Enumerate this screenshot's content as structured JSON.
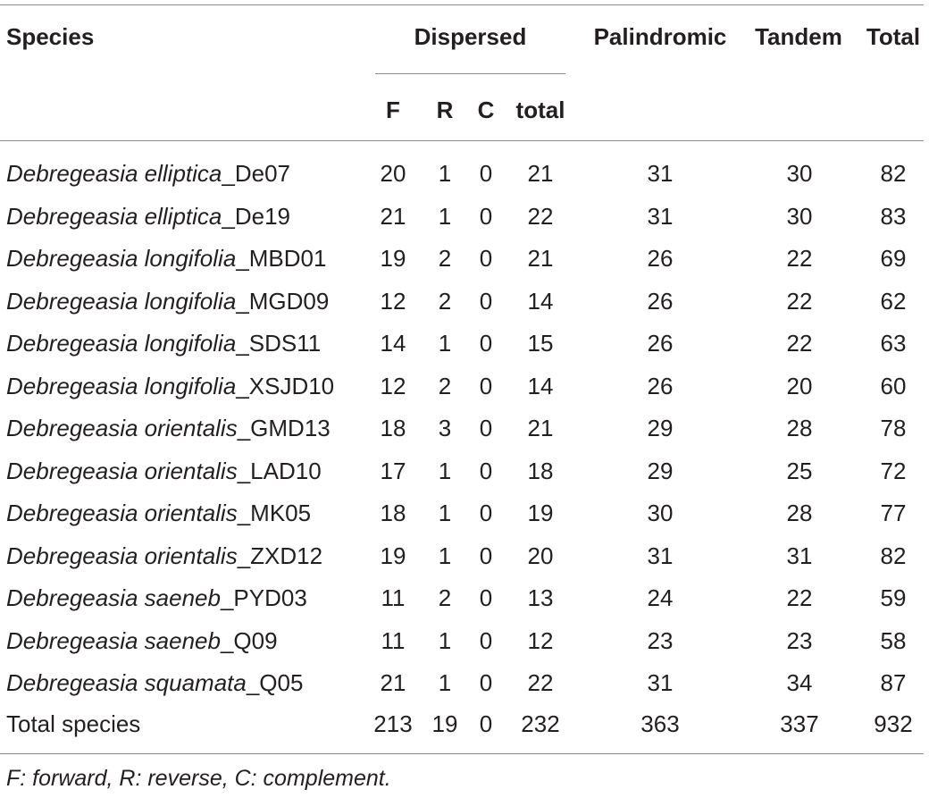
{
  "table": {
    "headers": {
      "species": "Species",
      "dispersed": "Dispersed",
      "palindromic": "Palindromic",
      "tandem": "Tandem",
      "total": "Total",
      "sub": {
        "f": "F",
        "r": "R",
        "c": "C",
        "total": "total"
      }
    },
    "rows": [
      {
        "genus_species": "Debregeasia elliptica",
        "suffix": "_De07",
        "f": "20",
        "r": "1",
        "c": "0",
        "disp_total": "21",
        "palindromic": "31",
        "tandem": "30",
        "total": "82"
      },
      {
        "genus_species": "Debregeasia elliptica",
        "suffix": "_De19",
        "f": "21",
        "r": "1",
        "c": "0",
        "disp_total": "22",
        "palindromic": "31",
        "tandem": "30",
        "total": "83"
      },
      {
        "genus_species": "Debregeasia longifolia",
        "suffix": "_MBD01",
        "f": "19",
        "r": "2",
        "c": "0",
        "disp_total": "21",
        "palindromic": "26",
        "tandem": "22",
        "total": "69"
      },
      {
        "genus_species": "Debregeasia longifolia",
        "suffix": "_MGD09",
        "f": "12",
        "r": "2",
        "c": "0",
        "disp_total": "14",
        "palindromic": "26",
        "tandem": "22",
        "total": "62"
      },
      {
        "genus_species": "Debregeasia longifolia",
        "suffix": "_SDS11",
        "f": "14",
        "r": "1",
        "c": "0",
        "disp_total": "15",
        "palindromic": "26",
        "tandem": "22",
        "total": "63"
      },
      {
        "genus_species": "Debregeasia longifolia",
        "suffix": "_XSJD10",
        "f": "12",
        "r": "2",
        "c": "0",
        "disp_total": "14",
        "palindromic": "26",
        "tandem": "20",
        "total": "60"
      },
      {
        "genus_species": "Debregeasia orientalis",
        "suffix": "_GMD13",
        "f": "18",
        "r": "3",
        "c": "0",
        "disp_total": "21",
        "palindromic": "29",
        "tandem": "28",
        "total": "78"
      },
      {
        "genus_species": "Debregeasia orientalis",
        "suffix": "_LAD10",
        "f": "17",
        "r": "1",
        "c": "0",
        "disp_total": "18",
        "palindromic": "29",
        "tandem": "25",
        "total": "72"
      },
      {
        "genus_species": "Debregeasia orientalis",
        "suffix": "_MK05",
        "f": "18",
        "r": "1",
        "c": "0",
        "disp_total": "19",
        "palindromic": "30",
        "tandem": "28",
        "total": "77"
      },
      {
        "genus_species": "Debregeasia orientalis",
        "suffix": "_ZXD12",
        "f": "19",
        "r": "1",
        "c": "0",
        "disp_total": "20",
        "palindromic": "31",
        "tandem": "31",
        "total": "82"
      },
      {
        "genus_species": "Debregeasia saeneb",
        "suffix": "_PYD03",
        "f": "11",
        "r": "2",
        "c": "0",
        "disp_total": "13",
        "palindromic": "24",
        "tandem": "22",
        "total": "59"
      },
      {
        "genus_species": "Debregeasia saeneb",
        "suffix": "_Q09",
        "f": "11",
        "r": "1",
        "c": "0",
        "disp_total": "12",
        "palindromic": "23",
        "tandem": "23",
        "total": "58"
      },
      {
        "genus_species": "Debregeasia squamata",
        "suffix": "_Q05",
        "f": "21",
        "r": "1",
        "c": "0",
        "disp_total": "22",
        "palindromic": "31",
        "tandem": "34",
        "total": "87"
      }
    ],
    "total_row": {
      "label": "Total species",
      "f": "213",
      "r": "19",
      "c": "0",
      "disp_total": "232",
      "palindromic": "363",
      "tandem": "337",
      "total": "932"
    },
    "footnote": "F: forward, R: reverse, C: complement."
  }
}
